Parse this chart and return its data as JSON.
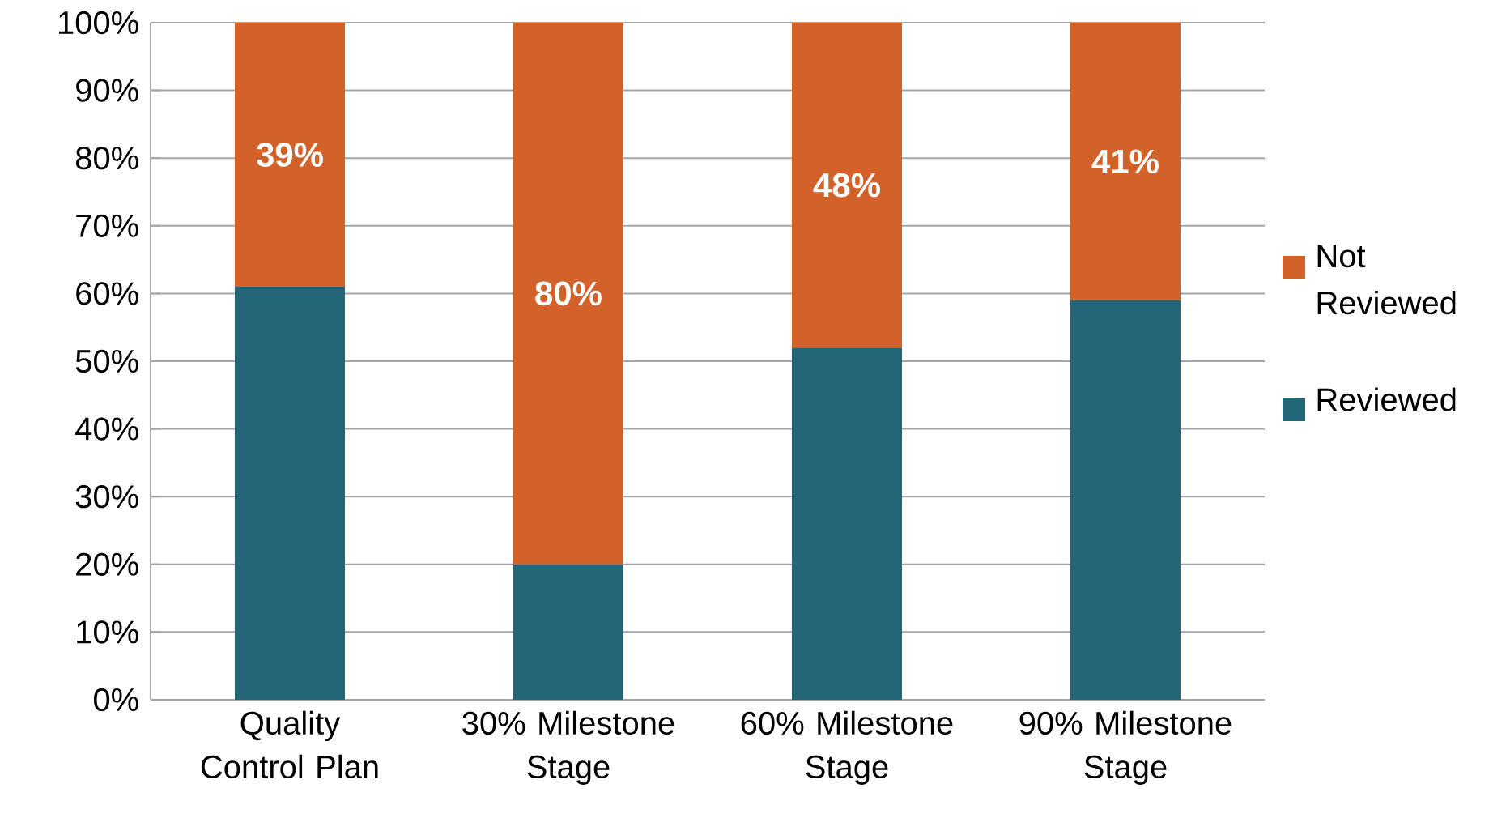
{
  "chart_data": {
    "type": "bar",
    "stacked": true,
    "categories": [
      "Quality Control Plan",
      "30% Milestone Stage",
      "60% Milestone Stage",
      "90% Milestone Stage"
    ],
    "series": [
      {
        "name": "Reviewed",
        "color": "#226677",
        "values": [
          61,
          20,
          52,
          59
        ]
      },
      {
        "name": "Not Reviewed",
        "color": "#d2622a",
        "values": [
          39,
          80,
          48,
          41
        ],
        "value_labels": [
          "39%",
          "80%",
          "48%",
          "41%"
        ]
      }
    ],
    "ylim": [
      0,
      100
    ],
    "yticks": [
      {
        "value": 0,
        "label": "0%"
      },
      {
        "value": 10,
        "label": "10%"
      },
      {
        "value": 20,
        "label": "20%"
      },
      {
        "value": 30,
        "label": "30%"
      },
      {
        "value": 40,
        "label": "40%"
      },
      {
        "value": 50,
        "label": "50%"
      },
      {
        "value": 60,
        "label": "60%"
      },
      {
        "value": 70,
        "label": "70%"
      },
      {
        "value": 80,
        "label": "80%"
      },
      {
        "value": 90,
        "label": "90%"
      },
      {
        "value": 100,
        "label": "100%"
      }
    ],
    "grid": "y",
    "legend": "right"
  }
}
